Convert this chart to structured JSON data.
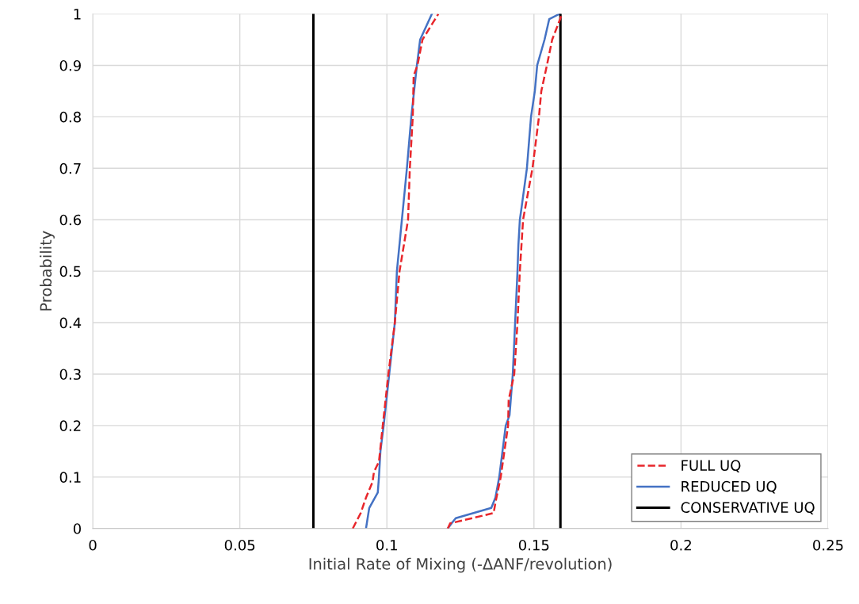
{
  "chart_data": {
    "type": "line",
    "xlabel": "Initial Rate of Mixing (-ΔANF/revolution)",
    "ylabel": "Probability",
    "xlim": [
      0,
      0.25
    ],
    "xticks": [
      0,
      0.05,
      0.1,
      0.15,
      0.2,
      0.25
    ],
    "ylim": [
      0,
      1
    ],
    "yticks": [
      0,
      0.1,
      0.2,
      0.3,
      0.4,
      0.5,
      0.6,
      0.7,
      0.8,
      0.9,
      1
    ],
    "grid": true,
    "legend": "bottom right",
    "series": [
      {
        "name": "FULL UQ",
        "color": "#e8262b",
        "line_style": "dashed",
        "x": [
          0.0884,
          0.0911,
          0.0929,
          0.0951,
          0.0956,
          0.0973,
          0.0986,
          0.1005,
          0.1027,
          0.1043,
          0.1072,
          0.1078,
          0.1088,
          0.1091,
          0.1104,
          0.1121,
          0.1175,
          null,
          0.1207,
          0.1215,
          0.1363,
          0.1369,
          0.1387,
          0.1412,
          0.1414,
          0.1433,
          0.1444,
          0.1452,
          0.1463,
          0.1495,
          0.1517,
          0.1525,
          0.1544,
          0.1562,
          0.1589,
          0.1595
        ],
        "values": [
          0,
          0.03,
          0.06,
          0.09,
          0.11,
          0.13,
          0.2,
          0.3,
          0.4,
          0.5,
          0.6,
          0.7,
          0.8,
          0.88,
          0.9,
          0.95,
          1,
          null,
          0,
          0.01,
          0.03,
          0.05,
          0.1,
          0.2,
          0.25,
          0.3,
          0.4,
          0.5,
          0.6,
          0.7,
          0.8,
          0.85,
          0.9,
          0.95,
          0.99,
          1
        ]
      },
      {
        "name": "REDUCED UQ",
        "color": "#4472c4",
        "line_style": "solid",
        "x": [
          0.0929,
          0.094,
          0.0969,
          0.0973,
          0.0978,
          0.0989,
          0.1008,
          0.1027,
          0.1034,
          0.1051,
          0.1068,
          0.1083,
          0.1102,
          0.1113,
          0.1153,
          null,
          0.1207,
          0.122,
          0.1234,
          0.1355,
          0.1369,
          0.1382,
          0.1404,
          0.1417,
          0.1428,
          0.1436,
          0.1444,
          0.1447,
          0.1452,
          0.1457,
          0.1476,
          0.149,
          0.1503,
          0.1511,
          0.1536,
          0.1552,
          0.1587
        ],
        "values": [
          0,
          0.04,
          0.07,
          0.1,
          0.15,
          0.2,
          0.3,
          0.4,
          0.5,
          0.6,
          0.7,
          0.8,
          0.9,
          0.95,
          1,
          null,
          0,
          0.01,
          0.02,
          0.04,
          0.06,
          0.1,
          0.2,
          0.22,
          0.3,
          0.4,
          0.5,
          0.55,
          0.6,
          0.62,
          0.7,
          0.8,
          0.85,
          0.9,
          0.95,
          0.99,
          1
        ]
      },
      {
        "name": "CONSERVATIVE UQ",
        "color": "#000000",
        "line_style": "solid",
        "x": [
          0.075,
          0.075,
          null,
          0.159,
          0.159
        ],
        "values": [
          0,
          1,
          null,
          1,
          0
        ]
      }
    ]
  }
}
